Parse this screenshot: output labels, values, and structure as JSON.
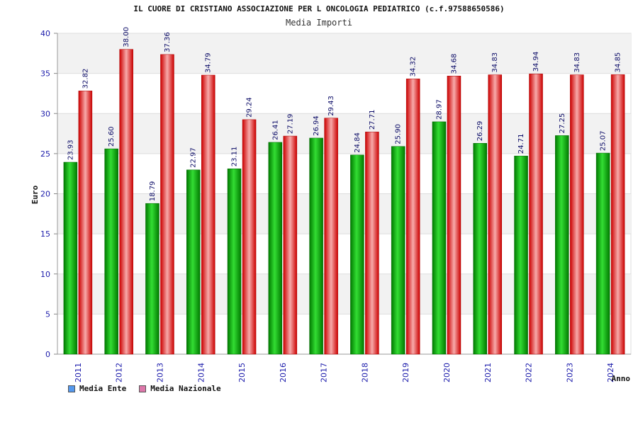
{
  "chart_data": {
    "type": "bar",
    "title": "IL CUORE DI CRISTIANO ASSOCIAZIONE PER L ONCOLOGIA PEDIATRICO (c.f.97588650586)",
    "subtitle": "Media Importi",
    "xlabel": "Anno",
    "ylabel": "Euro",
    "ylim": [
      0,
      40
    ],
    "yticks": [
      0,
      5,
      10,
      15,
      20,
      25,
      30,
      35,
      40
    ],
    "grid": true,
    "categories": [
      "2011",
      "2012",
      "2013",
      "2014",
      "2015",
      "2016",
      "2017",
      "2018",
      "2019",
      "2020",
      "2021",
      "2022",
      "2023",
      "2024"
    ],
    "series": [
      {
        "name": "Media Ente",
        "color": "#00aa00",
        "legend_color": "#5599ee",
        "values": [
          23.93,
          25.6,
          18.79,
          22.97,
          23.11,
          26.41,
          26.94,
          24.84,
          25.9,
          28.97,
          26.29,
          24.71,
          27.25,
          25.07
        ],
        "labels": [
          "23.93",
          "25.60",
          "18.79",
          "22.97",
          "23.11",
          "26.41",
          "26.94",
          "24.84",
          "25.90",
          "28.97",
          "26.29",
          "24.71",
          "27.25",
          "25.07"
        ]
      },
      {
        "name": "Media Nazionale",
        "color": "#ee1111",
        "legend_color": "#dd77aa",
        "values": [
          32.82,
          38.0,
          37.36,
          34.79,
          29.24,
          27.19,
          29.43,
          27.71,
          34.32,
          34.68,
          34.83,
          34.94,
          34.83,
          34.85
        ],
        "labels": [
          "32.82",
          "38.00",
          "37.36",
          "34.79",
          "29.24",
          "27.19",
          "29.43",
          "27.71",
          "34.32",
          "34.68",
          "34.83",
          "34.94",
          "34.83",
          "34.85"
        ]
      }
    ]
  }
}
